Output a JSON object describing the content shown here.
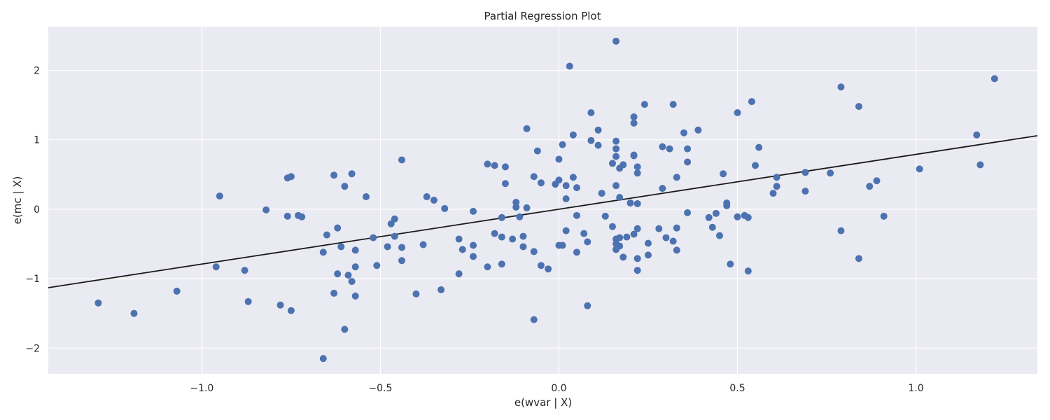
{
  "chart_data": {
    "type": "scatter",
    "title": "Partial Regression Plot",
    "xlabel": "e(wvar | X)",
    "ylabel": "e(mc | X)",
    "xlim": [
      -1.43,
      1.34
    ],
    "ylim": [
      -2.37,
      2.63
    ],
    "x_ticks": [
      -1.0,
      -0.5,
      0.0,
      0.5,
      1.0
    ],
    "x_tick_labels": [
      "−1.0",
      "−0.5",
      "0.0",
      "0.5",
      "1.0"
    ],
    "y_ticks": [
      -2,
      -1,
      0,
      1,
      2
    ],
    "y_tick_labels": [
      "−2",
      "−1",
      "0",
      "1",
      "2"
    ],
    "grid": true,
    "colors": {
      "background": "#eaeaf2",
      "points": "#4c72b0",
      "line": "#1a1a1a",
      "grid": "#ffffff"
    },
    "fit_line": {
      "slope": 0.79,
      "intercept": 0.0
    },
    "points": [
      [
        -1.29,
        -1.35
      ],
      [
        -1.19,
        -1.5
      ],
      [
        -1.07,
        -1.18
      ],
      [
        -0.95,
        0.19
      ],
      [
        -0.96,
        -0.83
      ],
      [
        -0.88,
        -0.88
      ],
      [
        -0.87,
        -1.33
      ],
      [
        -0.82,
        -0.01
      ],
      [
        -0.78,
        -1.38
      ],
      [
        -0.76,
        0.45
      ],
      [
        -0.75,
        0.47
      ],
      [
        -0.76,
        -0.1
      ],
      [
        -0.75,
        -1.46
      ],
      [
        -0.73,
        -0.09
      ],
      [
        -0.72,
        -0.11
      ],
      [
        -0.66,
        -2.15
      ],
      [
        -0.66,
        -0.62
      ],
      [
        -0.65,
        -0.37
      ],
      [
        -0.63,
        0.49
      ],
      [
        -0.63,
        -1.21
      ],
      [
        -0.62,
        -0.27
      ],
      [
        -0.62,
        -0.93
      ],
      [
        -0.61,
        -0.54
      ],
      [
        -0.6,
        -1.73
      ],
      [
        -0.6,
        0.33
      ],
      [
        -0.59,
        -0.95
      ],
      [
        -0.58,
        0.51
      ],
      [
        -0.57,
        -0.59
      ],
      [
        -0.57,
        -0.83
      ],
      [
        -0.58,
        -1.04
      ],
      [
        -0.57,
        -1.25
      ],
      [
        -0.54,
        0.18
      ],
      [
        -0.52,
        -0.41
      ],
      [
        -0.51,
        -0.81
      ],
      [
        -0.48,
        -0.54
      ],
      [
        -0.47,
        -0.21
      ],
      [
        -0.46,
        -0.14
      ],
      [
        -0.46,
        -0.39
      ],
      [
        -0.44,
        0.71
      ],
      [
        -0.44,
        -0.55
      ],
      [
        -0.44,
        -0.74
      ],
      [
        -0.4,
        -1.22
      ],
      [
        -0.38,
        -0.51
      ],
      [
        -0.37,
        0.18
      ],
      [
        -0.35,
        0.13
      ],
      [
        -0.33,
        -1.16
      ],
      [
        -0.32,
        0.01
      ],
      [
        -0.28,
        -0.43
      ],
      [
        -0.28,
        -0.93
      ],
      [
        -0.27,
        -0.58
      ],
      [
        -0.24,
        -0.03
      ],
      [
        -0.24,
        -0.52
      ],
      [
        -0.24,
        -0.68
      ],
      [
        -0.2,
        0.65
      ],
      [
        -0.2,
        -0.83
      ],
      [
        -0.18,
        0.63
      ],
      [
        -0.18,
        -0.35
      ],
      [
        -0.16,
        -0.12
      ],
      [
        -0.16,
        -0.4
      ],
      [
        -0.16,
        -0.79
      ],
      [
        -0.15,
        0.61
      ],
      [
        -0.15,
        0.37
      ],
      [
        -0.13,
        -0.43
      ],
      [
        -0.12,
        0.1
      ],
      [
        -0.12,
        0.03
      ],
      [
        -0.11,
        -0.11
      ],
      [
        -0.1,
        -0.54
      ],
      [
        -0.1,
        -0.39
      ],
      [
        -0.09,
        1.16
      ],
      [
        -0.09,
        0.02
      ],
      [
        -0.07,
        0.47
      ],
      [
        -0.07,
        -0.61
      ],
      [
        -0.07,
        -1.59
      ],
      [
        -0.06,
        0.84
      ],
      [
        -0.05,
        0.38
      ],
      [
        -0.05,
        -0.81
      ],
      [
        -0.03,
        -0.86
      ],
      [
        -0.01,
        0.36
      ],
      [
        0.0,
        0.42
      ],
      [
        0.0,
        0.72
      ],
      [
        0.0,
        -0.52
      ],
      [
        0.01,
        -0.52
      ],
      [
        0.01,
        0.93
      ],
      [
        0.02,
        0.34
      ],
      [
        0.02,
        -0.31
      ],
      [
        0.02,
        0.15
      ],
      [
        0.03,
        2.06
      ],
      [
        0.04,
        1.07
      ],
      [
        0.04,
        0.46
      ],
      [
        0.05,
        0.31
      ],
      [
        0.05,
        -0.09
      ],
      [
        0.05,
        -0.62
      ],
      [
        0.07,
        -0.35
      ],
      [
        0.08,
        -0.47
      ],
      [
        0.08,
        -1.39
      ],
      [
        0.09,
        1.39
      ],
      [
        0.09,
        0.99
      ],
      [
        0.11,
        1.14
      ],
      [
        0.11,
        0.92
      ],
      [
        0.12,
        0.23
      ],
      [
        0.13,
        -0.1
      ],
      [
        0.15,
        0.66
      ],
      [
        0.15,
        -0.25
      ],
      [
        0.16,
        2.42
      ],
      [
        0.16,
        0.98
      ],
      [
        0.16,
        0.87
      ],
      [
        0.16,
        0.76
      ],
      [
        0.16,
        0.34
      ],
      [
        0.16,
        -0.43
      ],
      [
        0.16,
        -0.5
      ],
      [
        0.16,
        -0.58
      ],
      [
        0.17,
        0.59
      ],
      [
        0.17,
        0.17
      ],
      [
        0.17,
        -0.41
      ],
      [
        0.17,
        -0.53
      ],
      [
        0.18,
        0.64
      ],
      [
        0.18,
        -0.69
      ],
      [
        0.19,
        -0.4
      ],
      [
        0.2,
        0.09
      ],
      [
        0.21,
        1.24
      ],
      [
        0.21,
        1.33
      ],
      [
        0.21,
        0.78
      ],
      [
        0.21,
        0.77
      ],
      [
        0.21,
        -0.36
      ],
      [
        0.22,
        -0.88
      ],
      [
        0.22,
        0.61
      ],
      [
        0.22,
        0.52
      ],
      [
        0.22,
        0.08
      ],
      [
        0.22,
        -0.28
      ],
      [
        0.22,
        -0.71
      ],
      [
        0.24,
        1.51
      ],
      [
        0.25,
        -0.49
      ],
      [
        0.25,
        -0.66
      ],
      [
        0.28,
        -0.28
      ],
      [
        0.29,
        0.9
      ],
      [
        0.29,
        0.3
      ],
      [
        0.3,
        -0.41
      ],
      [
        0.31,
        0.87
      ],
      [
        0.32,
        1.51
      ],
      [
        0.32,
        -0.46
      ],
      [
        0.33,
        0.46
      ],
      [
        0.33,
        -0.27
      ],
      [
        0.33,
        -0.59
      ],
      [
        0.35,
        1.1
      ],
      [
        0.36,
        -0.05
      ],
      [
        0.36,
        0.87
      ],
      [
        0.36,
        0.68
      ],
      [
        0.39,
        1.14
      ],
      [
        0.42,
        -0.12
      ],
      [
        0.43,
        -0.26
      ],
      [
        0.44,
        -0.06
      ],
      [
        0.45,
        -0.38
      ],
      [
        0.46,
        0.51
      ],
      [
        0.47,
        0.05
      ],
      [
        0.47,
        0.09
      ],
      [
        0.48,
        -0.79
      ],
      [
        0.5,
        1.39
      ],
      [
        0.5,
        -0.11
      ],
      [
        0.52,
        -0.09
      ],
      [
        0.53,
        -0.12
      ],
      [
        0.53,
        -0.89
      ],
      [
        0.54,
        1.55
      ],
      [
        0.55,
        0.63
      ],
      [
        0.56,
        0.89
      ],
      [
        0.6,
        0.23
      ],
      [
        0.61,
        0.46
      ],
      [
        0.61,
        0.33
      ],
      [
        0.69,
        0.53
      ],
      [
        0.69,
        0.26
      ],
      [
        0.76,
        0.52
      ],
      [
        0.79,
        1.76
      ],
      [
        0.79,
        -0.31
      ],
      [
        0.84,
        1.48
      ],
      [
        0.84,
        -0.71
      ],
      [
        0.87,
        0.33
      ],
      [
        0.89,
        0.41
      ],
      [
        0.91,
        -0.1
      ],
      [
        1.01,
        0.58
      ],
      [
        1.17,
        1.07
      ],
      [
        1.18,
        0.64
      ],
      [
        1.22,
        1.88
      ]
    ]
  }
}
